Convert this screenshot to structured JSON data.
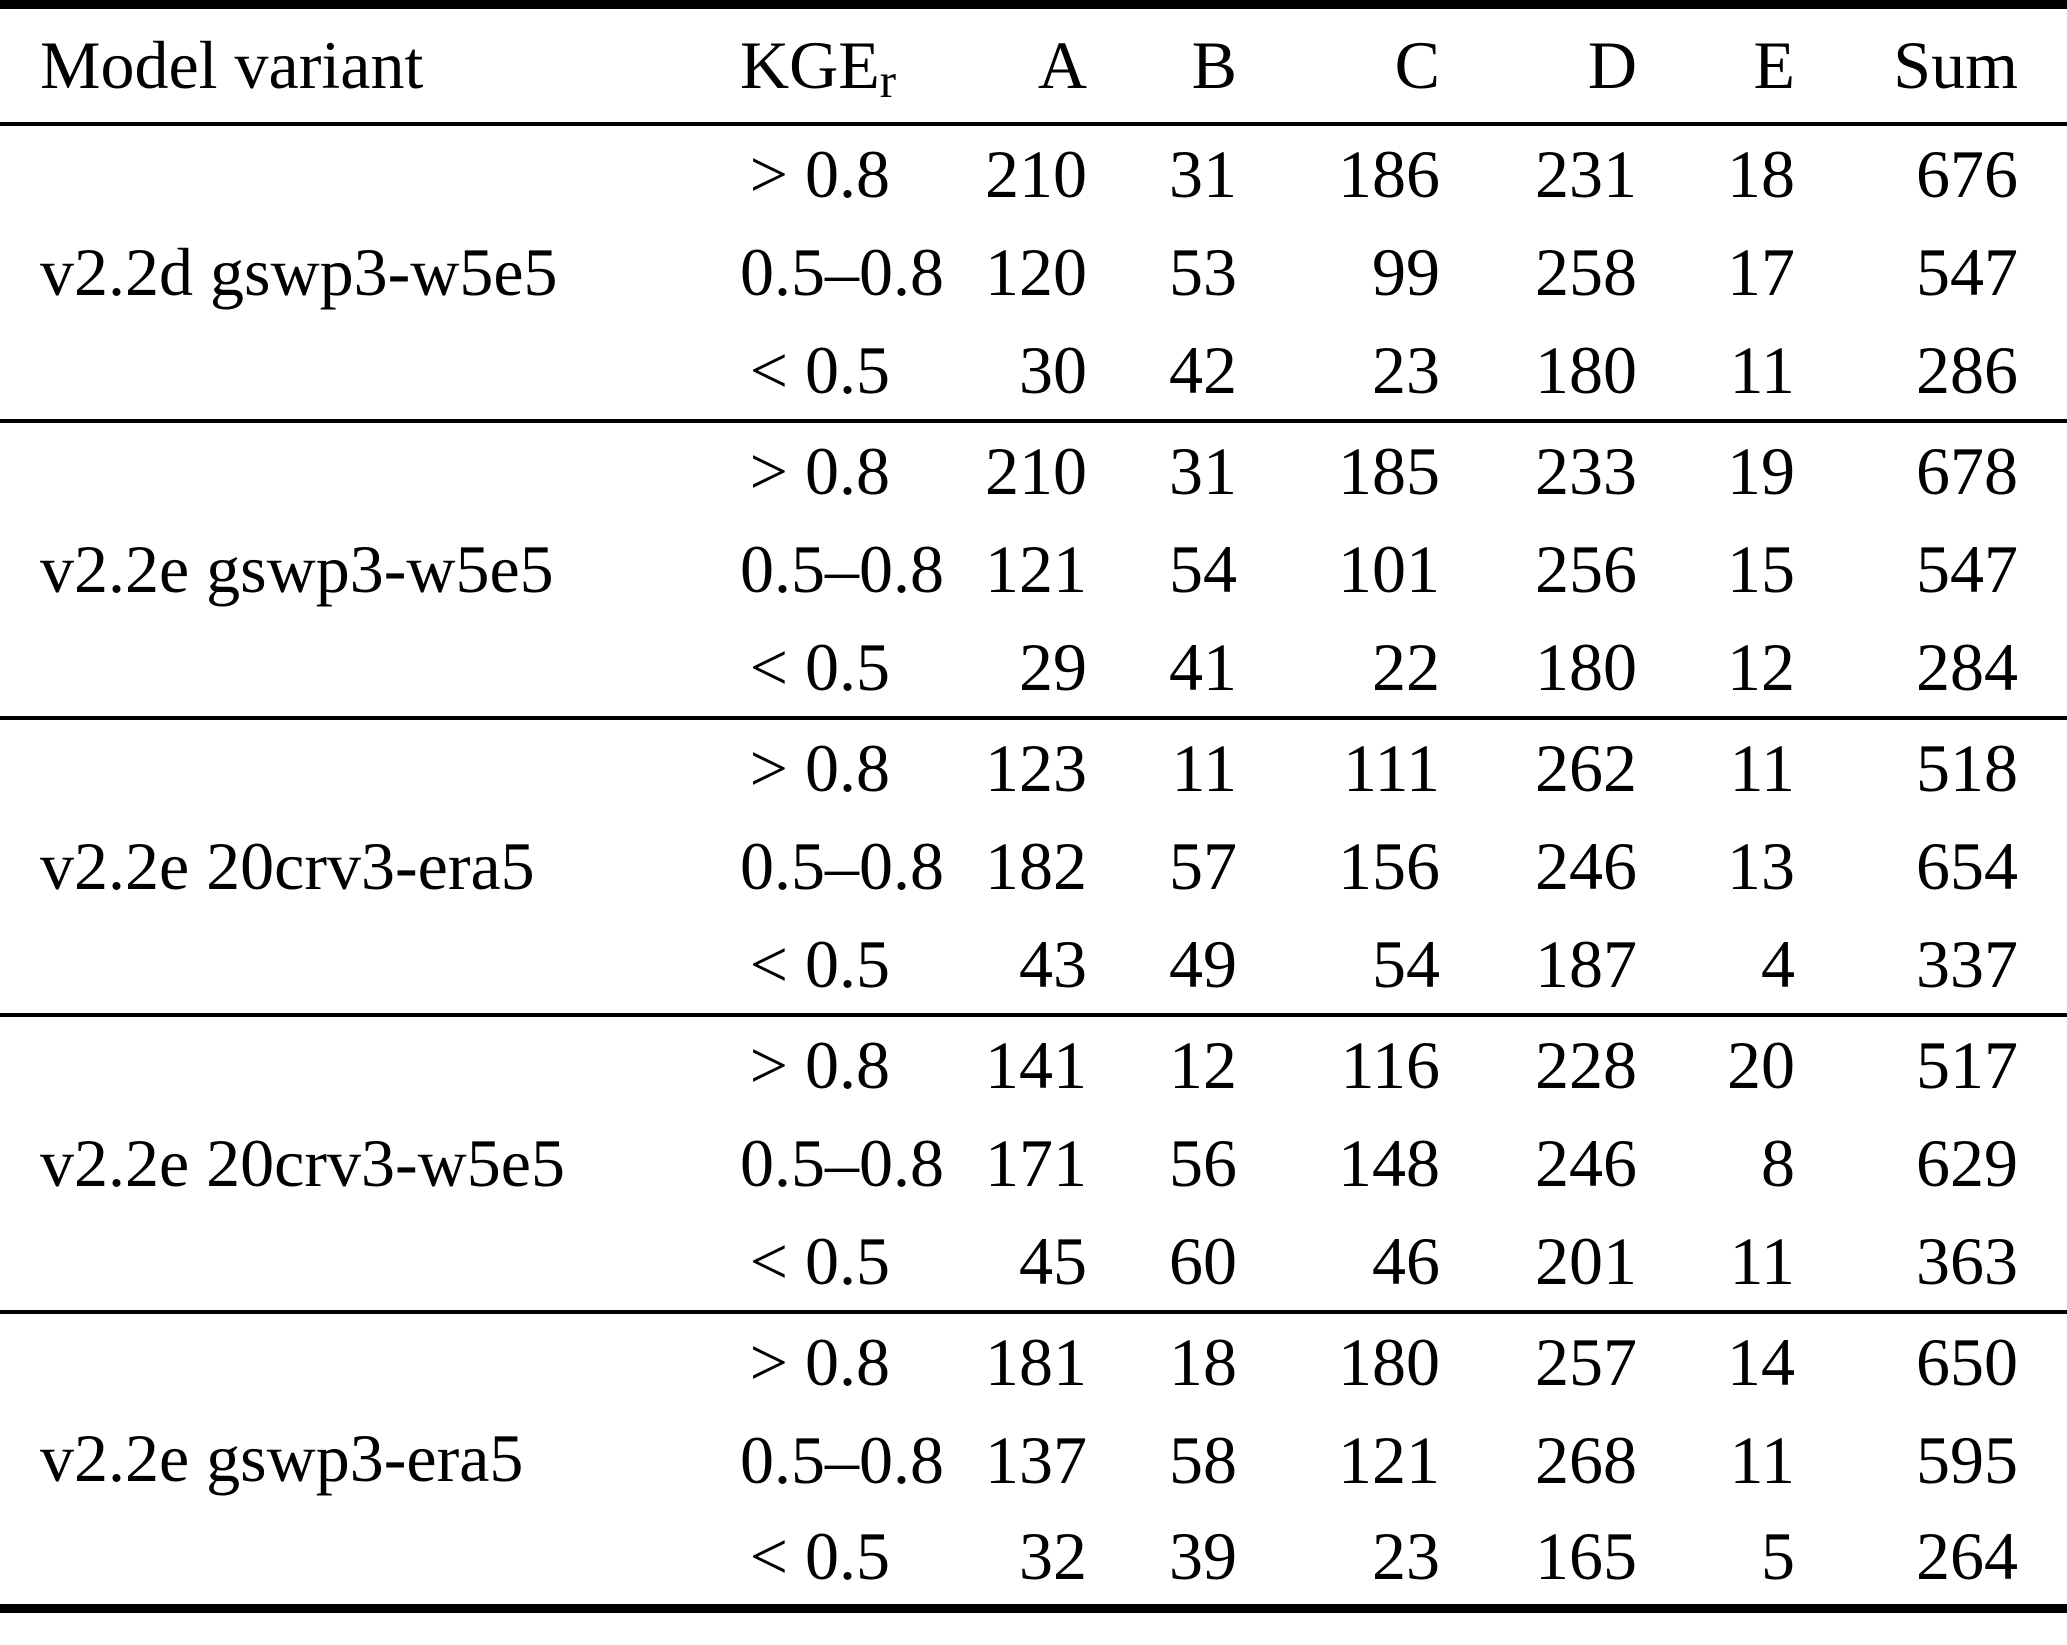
{
  "table": {
    "col_model_header": "Model variant",
    "kge_label": "KGE",
    "kge_sub": "r",
    "col_headers": [
      "A",
      "B",
      "C",
      "D",
      "E",
      "Sum"
    ],
    "blocks": [
      {
        "variant": "v2.2d gswp3-w5e5",
        "rows": [
          {
            "kge": "> 0.8",
            "values": [
              210,
              31,
              186,
              231,
              18,
              676
            ]
          },
          {
            "kge": "0.5–0.8",
            "values": [
              120,
              53,
              99,
              258,
              17,
              547
            ]
          },
          {
            "kge": "< 0.5",
            "values": [
              30,
              42,
              23,
              180,
              11,
              286
            ]
          }
        ]
      },
      {
        "variant": "v2.2e gswp3-w5e5",
        "rows": [
          {
            "kge": "> 0.8",
            "values": [
              210,
              31,
              185,
              233,
              19,
              678
            ]
          },
          {
            "kge": "0.5–0.8",
            "values": [
              121,
              54,
              101,
              256,
              15,
              547
            ]
          },
          {
            "kge": "< 0.5",
            "values": [
              29,
              41,
              22,
              180,
              12,
              284
            ]
          }
        ]
      },
      {
        "variant": "v2.2e 20crv3-era5",
        "rows": [
          {
            "kge": "> 0.8",
            "values": [
              123,
              11,
              111,
              262,
              11,
              518
            ]
          },
          {
            "kge": "0.5–0.8",
            "values": [
              182,
              57,
              156,
              246,
              13,
              654
            ]
          },
          {
            "kge": "< 0.5",
            "values": [
              43,
              49,
              54,
              187,
              4,
              337
            ]
          }
        ]
      },
      {
        "variant": "v2.2e 20crv3-w5e5",
        "rows": [
          {
            "kge": "> 0.8",
            "values": [
              141,
              12,
              116,
              228,
              20,
              517
            ]
          },
          {
            "kge": "0.5–0.8",
            "values": [
              171,
              56,
              148,
              246,
              8,
              629
            ]
          },
          {
            "kge": "< 0.5",
            "values": [
              45,
              60,
              46,
              201,
              11,
              363
            ]
          }
        ]
      },
      {
        "variant": "v2.2e gswp3-era5",
        "rows": [
          {
            "kge": "> 0.8",
            "values": [
              181,
              18,
              180,
              257,
              14,
              650
            ]
          },
          {
            "kge": "0.5–0.8",
            "values": [
              137,
              58,
              121,
              268,
              11,
              595
            ]
          },
          {
            "kge": "< 0.5",
            "values": [
              32,
              39,
              23,
              165,
              5,
              264
            ]
          }
        ]
      }
    ]
  }
}
